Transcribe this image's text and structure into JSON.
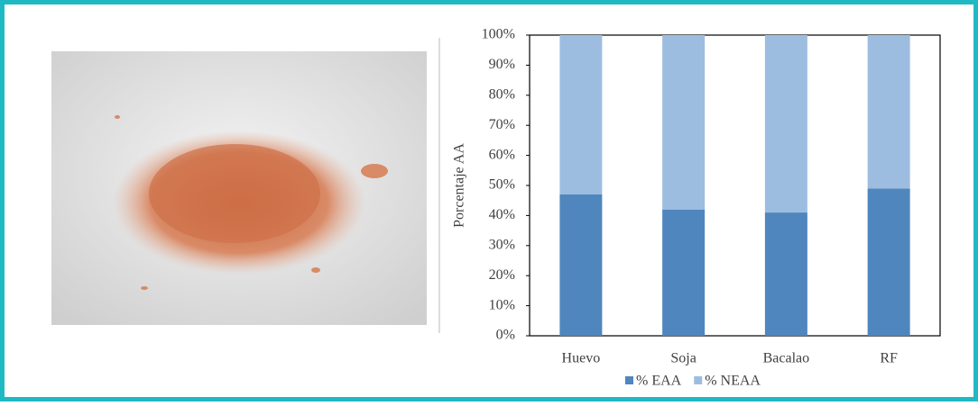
{
  "chart_data": {
    "type": "stacked-bar",
    "y_label": "Porcentaje AA",
    "categories": [
      "Huevo",
      "Soja",
      "Bacalao",
      "RF"
    ],
    "series": [
      {
        "name": "% EAA",
        "color": "#4f86bd",
        "values": [
          47,
          42,
          41,
          49
        ]
      },
      {
        "name": "% NEAA",
        "color": "#9dbde0",
        "values": [
          53,
          58,
          59,
          51
        ]
      }
    ],
    "ylim": [
      0,
      100
    ],
    "yticks": [
      {
        "value": 0,
        "label": "0%"
      },
      {
        "value": 10,
        "label": "10%"
      },
      {
        "value": 20,
        "label": "20%"
      },
      {
        "value": 30,
        "label": "30%"
      },
      {
        "value": 40,
        "label": "40%"
      },
      {
        "value": 50,
        "label": "50%"
      },
      {
        "value": 60,
        "label": "60%"
      },
      {
        "value": 70,
        "label": "70%"
      },
      {
        "value": 80,
        "label": "80%"
      },
      {
        "value": 90,
        "label": "90%"
      },
      {
        "value": 100,
        "label": "100%"
      }
    ],
    "legend": "bottom"
  }
}
